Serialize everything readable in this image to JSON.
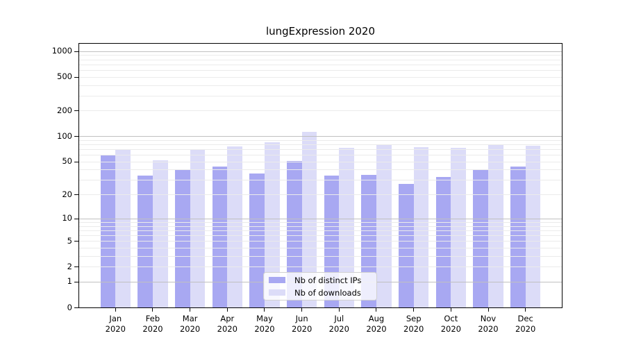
{
  "figure": {
    "title": "lungExpression 2020"
  },
  "chart_data": {
    "type": "bar",
    "title": "lungExpression 2020",
    "scale": "log1p",
    "grid": "horizontal, major at powers of 10, log-minor lines between",
    "legend_position": "bottom-center-inside",
    "categories": [
      "Jan",
      "Feb",
      "Mar",
      "Apr",
      "May",
      "Jun",
      "Jul",
      "Aug",
      "Sep",
      "Oct",
      "Nov",
      "Dec"
    ],
    "category_year": "2020",
    "yticks": [
      0,
      1,
      2,
      5,
      10,
      20,
      50,
      100,
      200,
      500,
      1000
    ],
    "ylim": [
      0,
      1250
    ],
    "series": [
      {
        "name": "Nb of distinct IPs",
        "color": "#a8a8f2",
        "values": [
          61,
          34,
          41,
          44,
          36,
          51,
          34,
          35,
          27,
          33,
          40,
          44
        ]
      },
      {
        "name": "Nb of downloads",
        "color": "#dcdcf8",
        "values": [
          70,
          52,
          70,
          77,
          85,
          113,
          74,
          81,
          75,
          74,
          81,
          78
        ]
      }
    ],
    "colors": {
      "major_grid": "#c0c0c0",
      "minor_grid": "#ebebeb",
      "axis": "#000000",
      "legend_border": "#d0d0d0"
    }
  }
}
